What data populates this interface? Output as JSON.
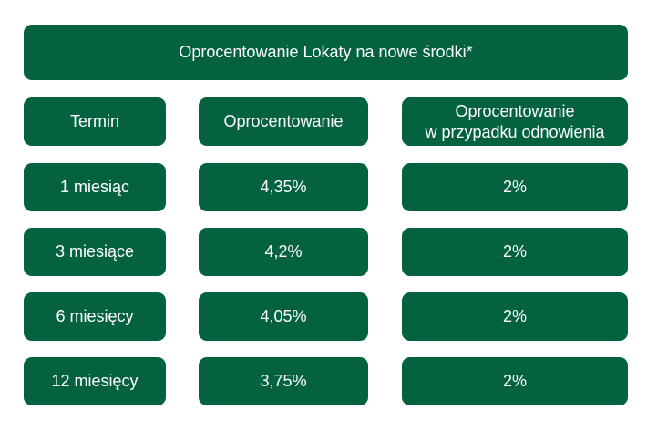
{
  "title": "Oprocentowanie Lokaty na nowe środki*",
  "headers": {
    "term": "Termin",
    "rate": "Oprocentowanie",
    "renewal_line1": "Oprocentowanie",
    "renewal_line2": "w przypadku odnowienia"
  },
  "rows": [
    {
      "term": "1 miesiąc",
      "rate": "4,35%",
      "renewal": "2%"
    },
    {
      "term": "3 miesiące",
      "rate": "4,2%",
      "renewal": "2%"
    },
    {
      "term": "6 miesięcy",
      "rate": "4,05%",
      "renewal": "2%"
    },
    {
      "term": "12 miesięcy",
      "rate": "3,75%",
      "renewal": "2%"
    }
  ],
  "colors": {
    "cell_background": "#04623f",
    "text": "#ffffff"
  }
}
